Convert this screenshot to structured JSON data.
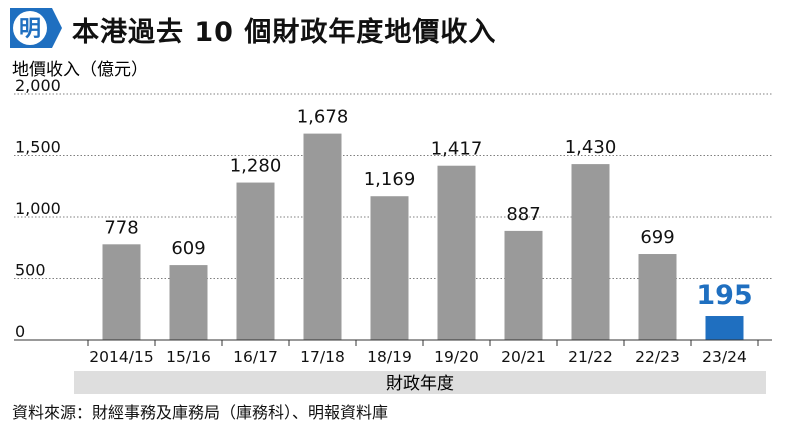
{
  "header": {
    "logo_text": "明",
    "title": "本港過去 10 個財政年度地價收入"
  },
  "colors": {
    "bar_default": "#9a9a9a",
    "bar_highlight": "#1f6fc0",
    "axis_band": "#dedede",
    "logo": "#1f6fc0"
  },
  "chart_data": {
    "type": "bar",
    "title": "本港過去 10 個財政年度地價收入",
    "ylabel": "地價收入（億元）",
    "xlabel": "財政年度",
    "categories": [
      "2014/15",
      "15/16",
      "16/17",
      "17/18",
      "18/19",
      "19/20",
      "20/21",
      "21/22",
      "22/23",
      "23/24"
    ],
    "values": [
      778,
      609,
      1280,
      1678,
      1169,
      1417,
      887,
      1430,
      699,
      195
    ],
    "value_labels": [
      "778",
      "609",
      "1,280",
      "1,678",
      "1,169",
      "1,417",
      "887",
      "1,430",
      "699",
      "195"
    ],
    "highlight_index": 9,
    "ylim": [
      0,
      2000
    ],
    "yticks": [
      0,
      500,
      1000,
      1500,
      2000
    ],
    "ytick_labels": [
      "0",
      "500",
      "1,000",
      "1,500",
      "2,000"
    ],
    "grid": true
  },
  "footer": {
    "source": "資料來源：財經事務及庫務局（庫務科）、明報資料庫"
  }
}
